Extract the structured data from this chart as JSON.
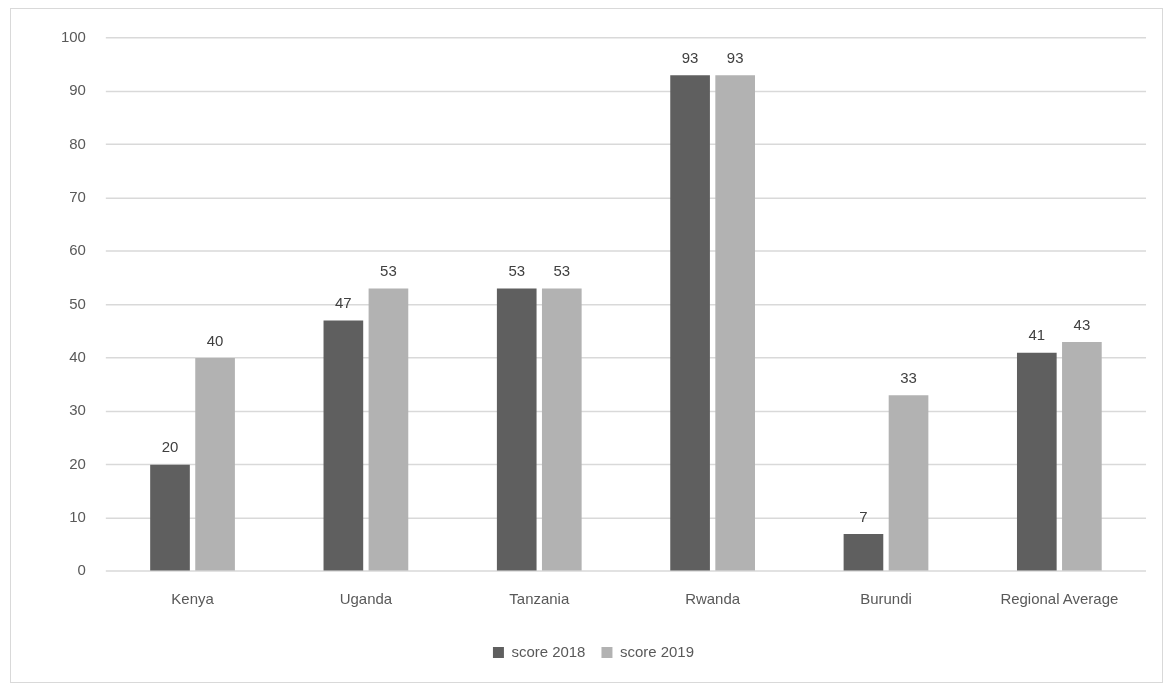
{
  "chart_data": {
    "type": "bar",
    "categories": [
      "Kenya",
      "Uganda",
      "Tanzania",
      "Rwanda",
      "Burundi",
      "Regional Average"
    ],
    "series": [
      {
        "name": "score 2018",
        "color": "#5f5f5f",
        "values": [
          20,
          47,
          53,
          93,
          7,
          41
        ]
      },
      {
        "name": "score 2019",
        "color": "#b2b2b2",
        "values": [
          40,
          53,
          53,
          93,
          33,
          43
        ]
      }
    ],
    "ylim": [
      0,
      100
    ],
    "yticks": [
      0,
      10,
      20,
      30,
      40,
      50,
      60,
      70,
      80,
      90,
      100
    ],
    "grid": "y",
    "legend": "bottom",
    "data_labels": true
  }
}
